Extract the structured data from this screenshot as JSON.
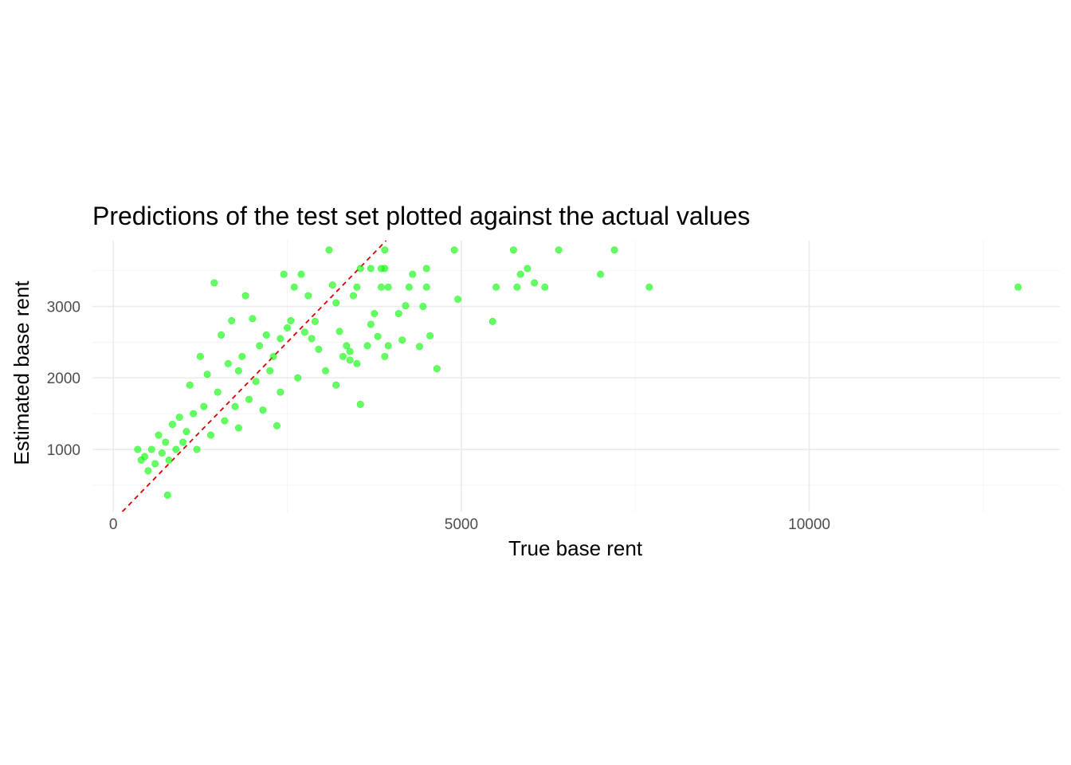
{
  "chart_data": {
    "type": "scatter",
    "title": "Predictions of the test set plotted against the actual values",
    "xlabel": "True base rent",
    "ylabel": "Estimated base rent",
    "xlim": [
      -300,
      13600
    ],
    "ylim": [
      130,
      3920
    ],
    "x_ticks": [
      0,
      5000,
      10000
    ],
    "y_ticks": [
      1000,
      2000,
      3000
    ],
    "x_tick_labels": [
      "0",
      "5000",
      "10000"
    ],
    "y_tick_labels": [
      "1000",
      "2000",
      "3000"
    ],
    "grid": true,
    "legend": "none",
    "point_color": "#00ff00",
    "reference_line": {
      "slope": 1,
      "intercept": 0,
      "style": "dashed",
      "color": "#d40000"
    },
    "series": [
      {
        "values": [
          [
            13000,
            3270
          ],
          [
            7700,
            3270
          ],
          [
            7200,
            3790
          ],
          [
            7000,
            3450
          ],
          [
            6400,
            3790
          ],
          [
            6200,
            3270
          ],
          [
            6050,
            3330
          ],
          [
            5950,
            3530
          ],
          [
            5850,
            3450
          ],
          [
            5800,
            3270
          ],
          [
            5750,
            3790
          ],
          [
            5500,
            3270
          ],
          [
            5450,
            2790
          ],
          [
            4950,
            3100
          ],
          [
            4900,
            3790
          ],
          [
            4650,
            2130
          ],
          [
            4550,
            2590
          ],
          [
            4500,
            3530
          ],
          [
            4500,
            3270
          ],
          [
            4450,
            3000
          ],
          [
            4400,
            2440
          ],
          [
            4300,
            3450
          ],
          [
            4250,
            3270
          ],
          [
            4200,
            3010
          ],
          [
            4150,
            2530
          ],
          [
            4100,
            2900
          ],
          [
            3950,
            3270
          ],
          [
            3950,
            2450
          ],
          [
            3900,
            3790
          ],
          [
            3900,
            3530
          ],
          [
            3900,
            2300
          ],
          [
            3850,
            3270
          ],
          [
            3850,
            3530
          ],
          [
            3800,
            2580
          ],
          [
            3750,
            2900
          ],
          [
            3700,
            2750
          ],
          [
            3700,
            3530
          ],
          [
            3650,
            2450
          ],
          [
            3550,
            1630
          ],
          [
            3550,
            3530
          ],
          [
            3500,
            2200
          ],
          [
            3500,
            3270
          ],
          [
            3450,
            3150
          ],
          [
            3400,
            2370
          ],
          [
            3400,
            2250
          ],
          [
            3350,
            2450
          ],
          [
            3300,
            2300
          ],
          [
            3250,
            2650
          ],
          [
            3200,
            1900
          ],
          [
            3200,
            3050
          ],
          [
            3150,
            3300
          ],
          [
            3100,
            3790
          ],
          [
            3050,
            2100
          ],
          [
            2950,
            2400
          ],
          [
            2900,
            2790
          ],
          [
            2850,
            2550
          ],
          [
            2800,
            3150
          ],
          [
            2750,
            2640
          ],
          [
            2700,
            3450
          ],
          [
            2650,
            2000
          ],
          [
            2600,
            3270
          ],
          [
            2550,
            2800
          ],
          [
            2500,
            2700
          ],
          [
            2450,
            3450
          ],
          [
            2400,
            2550
          ],
          [
            2400,
            1800
          ],
          [
            2350,
            1330
          ],
          [
            2300,
            2300
          ],
          [
            2250,
            2100
          ],
          [
            2200,
            2600
          ],
          [
            2150,
            1550
          ],
          [
            2100,
            2450
          ],
          [
            2050,
            1950
          ],
          [
            2000,
            2830
          ],
          [
            1950,
            1700
          ],
          [
            1900,
            3150
          ],
          [
            1850,
            2300
          ],
          [
            1800,
            1300
          ],
          [
            1800,
            2100
          ],
          [
            1750,
            1600
          ],
          [
            1700,
            2800
          ],
          [
            1650,
            2200
          ],
          [
            1600,
            1400
          ],
          [
            1550,
            2600
          ],
          [
            1500,
            1800
          ],
          [
            1450,
            3330
          ],
          [
            1400,
            1200
          ],
          [
            1350,
            2050
          ],
          [
            1300,
            1600
          ],
          [
            1250,
            2300
          ],
          [
            1200,
            1000
          ],
          [
            1150,
            1500
          ],
          [
            1100,
            1900
          ],
          [
            1050,
            1250
          ],
          [
            1000,
            1100
          ],
          [
            950,
            1450
          ],
          [
            900,
            1000
          ],
          [
            850,
            1350
          ],
          [
            800,
            850
          ],
          [
            750,
            1100
          ],
          [
            700,
            950
          ],
          [
            650,
            1200
          ],
          [
            600,
            800
          ],
          [
            550,
            1000
          ],
          [
            500,
            700
          ],
          [
            450,
            900
          ],
          [
            400,
            850
          ],
          [
            350,
            1000
          ],
          [
            780,
            360
          ]
        ]
      }
    ]
  }
}
